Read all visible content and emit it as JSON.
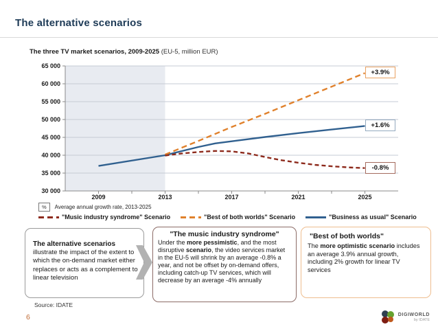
{
  "header": {
    "title": "The alternative scenarios"
  },
  "chart": {
    "title_bold": "The three TV market scenarios, 2009-2025",
    "title_normal": "(EU-5, million EUR)",
    "note_badge": "%",
    "note_text": "Average annual growth rate, 2013-2025"
  },
  "chart_data": {
    "type": "line",
    "title": "The three TV market scenarios, 2009-2025 (EU-5, million EUR)",
    "x_range": [
      2007,
      2027
    ],
    "x_ticks": [
      2009,
      2013,
      2017,
      2021,
      2025
    ],
    "x_minor_ticks": [
      2009,
      2011,
      2013,
      2015,
      2017,
      2019,
      2021,
      2023,
      2025
    ],
    "y_range": [
      30000,
      65000
    ],
    "y_ticks": [
      65000,
      60000,
      55000,
      50000,
      45000,
      40000,
      35000,
      30000
    ],
    "y_tick_labels": [
      "65 000",
      "60 000",
      "55 000",
      "50 000",
      "45 000",
      "40 000",
      "35 000",
      "30 000"
    ],
    "grid": true,
    "shaded_region": {
      "from": 2007,
      "to": 2013,
      "color": "#e8ebf1"
    },
    "colors": {
      "gridline": "#c6cbd4",
      "axis": "#8a8a8a"
    },
    "series": [
      {
        "name": "\"Music industry syndrome\" Scenario",
        "color": "#8d2a1c",
        "dashed": true,
        "dash": "6 4",
        "growth_label": "-0.8%",
        "label_border": "#a46a5d",
        "points": [
          [
            2013,
            39900
          ],
          [
            2014,
            40500
          ],
          [
            2015,
            40900
          ],
          [
            2016,
            41200
          ],
          [
            2017,
            41100
          ],
          [
            2018,
            40500
          ],
          [
            2019,
            39500
          ],
          [
            2020,
            38600
          ],
          [
            2021,
            37900
          ],
          [
            2022,
            37300
          ],
          [
            2023,
            36900
          ],
          [
            2024,
            36600
          ],
          [
            2025,
            36400
          ]
        ]
      },
      {
        "name": "\"Best of both worlds\" Scenario",
        "color": "#e0812c",
        "dashed": true,
        "dash": "8 5",
        "growth_label": "+3.9%",
        "label_border": "#e9a161",
        "points": [
          [
            2013,
            40200
          ],
          [
            2015,
            44000
          ],
          [
            2017,
            47900
          ],
          [
            2019,
            51600
          ],
          [
            2021,
            55400
          ],
          [
            2023,
            59200
          ],
          [
            2025,
            63000
          ]
        ]
      },
      {
        "name": "\"Business as usual\" Scenario",
        "color": "#30608f",
        "dashed": false,
        "dash": "",
        "growth_label": "+1.6%",
        "label_border": "#93a9be",
        "points": [
          [
            2009,
            37000
          ],
          [
            2013,
            40000
          ],
          [
            2015,
            42300
          ],
          [
            2016,
            43300
          ],
          [
            2017,
            43900
          ],
          [
            2019,
            45100
          ],
          [
            2021,
            46200
          ],
          [
            2023,
            47200
          ],
          [
            2025,
            48200
          ]
        ]
      }
    ]
  },
  "boxes": {
    "left": {
      "title": "The alternative scenarios",
      "body": "illustrate the impact of the extent to which the on-demand market either replaces or acts as a complement to linear television"
    },
    "mid": {
      "title": "\"The music industry syndrome\"",
      "body": [
        {
          "t": "Under the ",
          "b": false
        },
        {
          "t": "more pessimistic",
          "b": true
        },
        {
          "t": ", and the most disruptive ",
          "b": false
        },
        {
          "t": "scenario",
          "b": true
        },
        {
          "t": ", the video services market in the EU-5 will shrink by an average -0.8% a year, and not be offset by on-demand offers, including catch-up TV services, which will decrease by an average -4% annually",
          "b": false
        }
      ]
    },
    "right": {
      "title": "\"Best of both worlds\"",
      "body": [
        {
          "t": "The ",
          "b": false
        },
        {
          "t": "more optimistic scenario",
          "b": true
        },
        {
          "t": " includes an average 3.9% annual growth, including 2% growth for linear TV services",
          "b": false
        }
      ]
    }
  },
  "footer": {
    "source": "Source: IDATE",
    "page_number": "6",
    "logo_name": "DIGIWORLD",
    "logo_sub": "by IDATE",
    "logo_colors": [
      "#2e3f50",
      "#66a12e",
      "#7e1d12",
      "#c05a1e"
    ]
  }
}
